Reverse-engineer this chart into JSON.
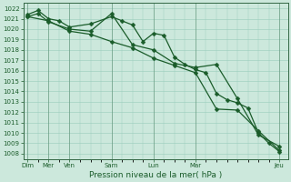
{
  "title": "",
  "xlabel": "Pression niveau de la mer( hPa )",
  "background_color": "#cce8dc",
  "grid_color": "#99ccbb",
  "line_color": "#1a5c2a",
  "spine_color": "#336644",
  "ylim": [
    1007.5,
    1022.5
  ],
  "yticks": [
    1008,
    1009,
    1010,
    1011,
    1012,
    1013,
    1014,
    1015,
    1016,
    1017,
    1018,
    1019,
    1020,
    1021,
    1022
  ],
  "xtick_positions": [
    0,
    1,
    2,
    4,
    6,
    8,
    12
  ],
  "xtick_labels": [
    "Dim",
    "Mer",
    "Ven",
    "Sam",
    "Lun",
    "Mar",
    "Jeu"
  ],
  "xlim": [
    -0.2,
    12.4
  ],
  "line1_x": [
    0,
    0.5,
    1,
    1.5,
    2,
    3,
    4,
    4.5,
    5,
    5.5,
    6,
    6.5,
    7,
    7.5,
    8,
    8.5,
    9,
    9.5,
    10,
    10.5,
    11,
    11.5,
    12
  ],
  "line1_y": [
    1021.4,
    1021.8,
    1021.0,
    1020.8,
    1020.2,
    1020.5,
    1021.2,
    1020.8,
    1020.4,
    1018.8,
    1019.6,
    1019.4,
    1017.3,
    1016.6,
    1016.1,
    1015.8,
    1013.8,
    1013.2,
    1012.9,
    1012.4,
    1010.0,
    1009.0,
    1008.2
  ],
  "line2_x": [
    0,
    0.5,
    1,
    2,
    3,
    4,
    5,
    6,
    7,
    8,
    9,
    10,
    11,
    12
  ],
  "line2_y": [
    1021.2,
    1021.5,
    1020.7,
    1020.0,
    1019.8,
    1021.5,
    1018.5,
    1018.0,
    1016.7,
    1016.3,
    1016.6,
    1013.3,
    1009.8,
    1008.7
  ],
  "line3_x": [
    0,
    1,
    2,
    3,
    4,
    5,
    6,
    7,
    8,
    9,
    10,
    11,
    12
  ],
  "line3_y": [
    1021.2,
    1020.8,
    1019.8,
    1019.5,
    1018.8,
    1018.2,
    1017.2,
    1016.5,
    1015.8,
    1012.3,
    1012.2,
    1010.2,
    1008.3
  ],
  "marker": "D",
  "marker_size": 2.5,
  "linewidth": 0.9,
  "tick_fontsize": 5.0,
  "xlabel_fontsize": 6.5
}
